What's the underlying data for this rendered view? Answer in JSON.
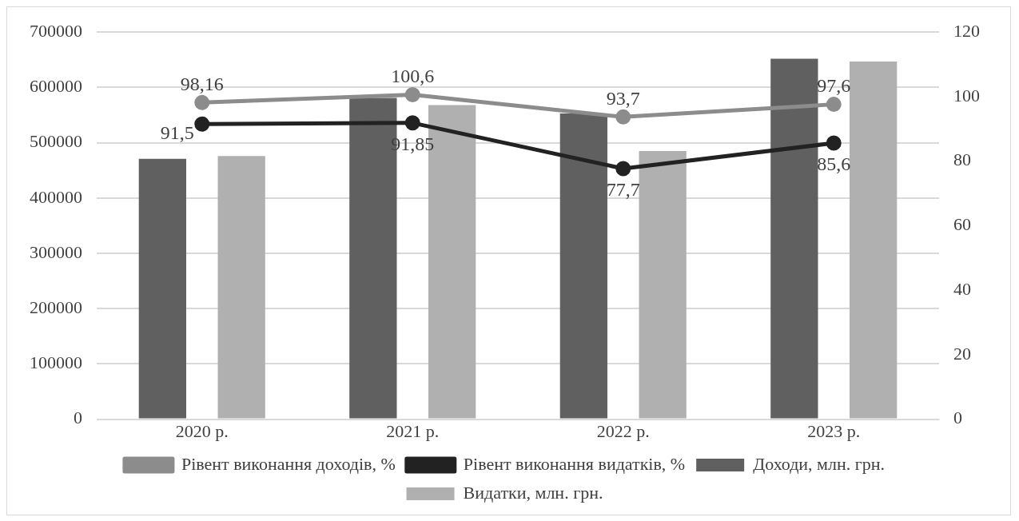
{
  "chart_data": {
    "type": "bar",
    "categories": [
      "2020 р.",
      "2021 р.",
      "2022 р.",
      "2023 р."
    ],
    "series": [
      {
        "name": "Доходи, млн. грн.",
        "color": "#606060",
        "values": [
          471000,
          581000,
          553000,
          652000
        ]
      },
      {
        "name": "Видатки, млн. грн.",
        "color": "#b0b0b0",
        "values": [
          476000,
          568000,
          485000,
          647000
        ]
      },
      {
        "name": "Рівент виконання доходів, %",
        "type": "line",
        "axis": "y2",
        "color": "#8c8c8c",
        "values": [
          98.16,
          100.6,
          93.7,
          97.6
        ],
        "value_labels": [
          "98,16",
          "100,6",
          "93,7",
          "97,6"
        ]
      },
      {
        "name": "Рівент виконання видатків, %",
        "type": "line",
        "axis": "y2",
        "color": "#222222",
        "values": [
          91.5,
          91.85,
          77.7,
          85.6
        ],
        "value_labels": [
          "91,5",
          "91,85",
          "77,7",
          "85,6"
        ]
      }
    ],
    "ylim": [
      0,
      700000
    ],
    "yticks": [
      0,
      100000,
      200000,
      300000,
      400000,
      500000,
      600000,
      700000
    ],
    "y2lim": [
      0,
      120
    ],
    "y2ticks": [
      0,
      20,
      40,
      60,
      80,
      100,
      120
    ],
    "grid": "y",
    "legend": "bottom",
    "marker": "circle",
    "line_style": "solid"
  }
}
